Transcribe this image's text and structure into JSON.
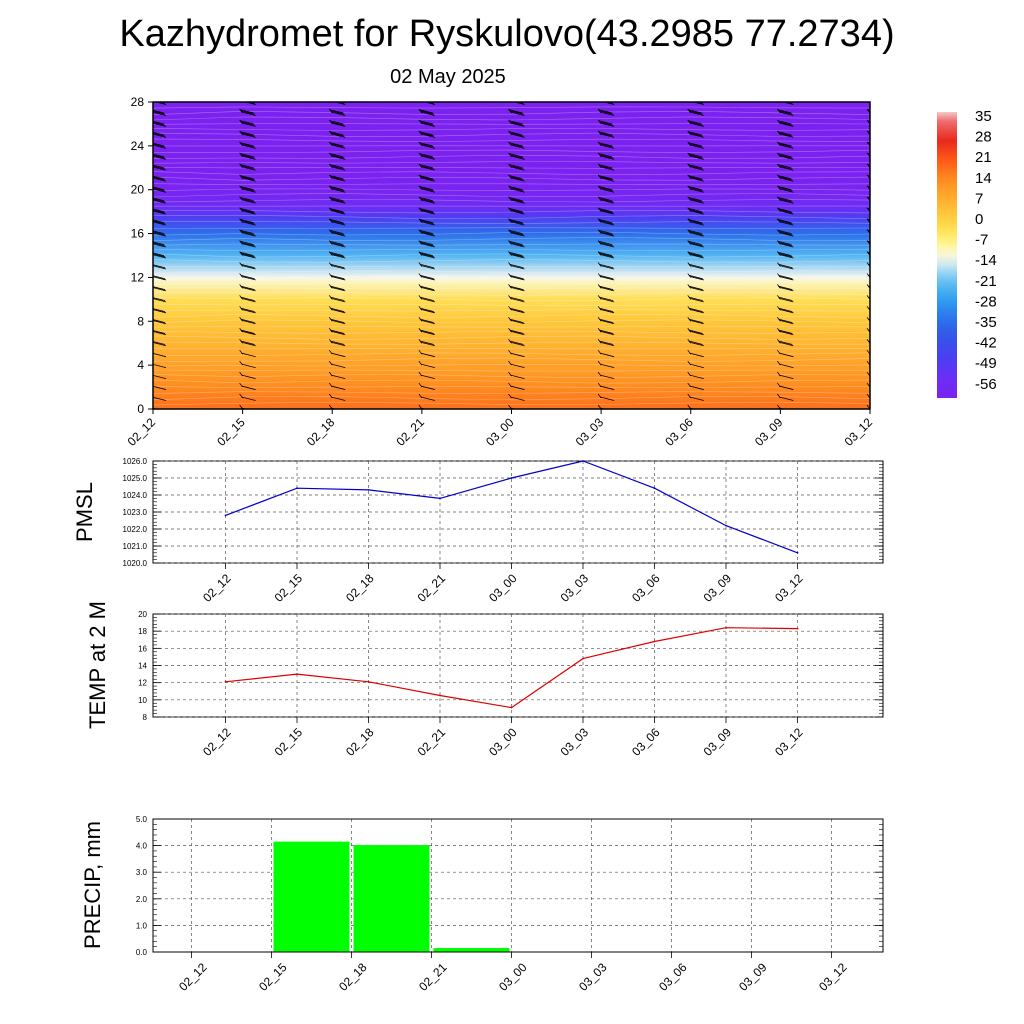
{
  "header": {
    "title": "Kazhydromet for Ryskulovo(43.2985 77.2734)",
    "date": "02 May 2025"
  },
  "colors": {
    "pmsl_line": "#0000cc",
    "temp_line": "#e00000",
    "precip_bar": "#00ff00",
    "barb": "#000000"
  },
  "chart_data": [
    {
      "id": "cross_section",
      "type": "heatmap",
      "x_ticks": [
        "02_12",
        "02_15",
        "02_18",
        "02_21",
        "03_00",
        "03_03",
        "03_06",
        "03_09",
        "03_12"
      ],
      "y_ticks": [
        "0",
        "4",
        "8",
        "12",
        "16",
        "20",
        "24",
        "28"
      ],
      "ylim": [
        0,
        28
      ],
      "levels": [
        0,
        1,
        2,
        3,
        4,
        5,
        6,
        7,
        8,
        9,
        10,
        11,
        12,
        13,
        14,
        15,
        16,
        17,
        18,
        19,
        20,
        21,
        22,
        23,
        24,
        25,
        26,
        27,
        28
      ],
      "temperature_profile": [
        [
          0,
          18
        ],
        [
          2,
          14
        ],
        [
          4,
          10
        ],
        [
          6,
          6
        ],
        [
          8,
          2
        ],
        [
          10,
          -3
        ],
        [
          11.8,
          -12
        ],
        [
          12,
          -14
        ],
        [
          14,
          -24
        ],
        [
          16,
          -36
        ],
        [
          17.5,
          -50
        ],
        [
          18.5,
          -58
        ],
        [
          20,
          -62
        ],
        [
          22,
          -64
        ],
        [
          24,
          -65
        ],
        [
          28,
          -66
        ]
      ],
      "colorbar": {
        "labels": [
          "35",
          "28",
          "21",
          "14",
          "7",
          "0",
          "-7",
          "-14",
          "-21",
          "-28",
          "-35",
          "-42",
          "-49",
          "-56"
        ],
        "range": [
          -63,
          38
        ]
      },
      "has_wind_barbs": true
    },
    {
      "id": "pmsl",
      "type": "line",
      "ylabel": "PMSL",
      "x_ticks": [
        "02_12",
        "02_15",
        "02_18",
        "02_21",
        "03_00",
        "03_03",
        "03_06",
        "03_09",
        "03_12"
      ],
      "y_ticks": [
        "1020.0",
        "1021.0",
        "1022.0",
        "1023.0",
        "1024.0",
        "1025.0",
        "1026.0"
      ],
      "ylim": [
        1020,
        1026
      ],
      "series": [
        {
          "values": [
            1022.8,
            1024.4,
            1024.3,
            1023.8,
            1025.0,
            1026.0,
            1024.4,
            1022.2,
            1020.6
          ]
        }
      ]
    },
    {
      "id": "temp2m",
      "type": "line",
      "ylabel": "TEMP at 2 M",
      "x_ticks": [
        "02_12",
        "02_15",
        "02_18",
        "02_21",
        "03_00",
        "03_03",
        "03_06",
        "03_09",
        "03_12"
      ],
      "y_ticks": [
        "8",
        "10",
        "12",
        "14",
        "16",
        "18",
        "20"
      ],
      "ylim": [
        8,
        20
      ],
      "series": [
        {
          "values": [
            12.1,
            13.0,
            12.1,
            10.5,
            9.1,
            14.8,
            16.8,
            18.4,
            18.3
          ]
        }
      ]
    },
    {
      "id": "precip",
      "type": "bar",
      "ylabel": "PRECIP, mm",
      "x_ticks": [
        "02_12",
        "02_15",
        "02_18",
        "02_21",
        "03_00",
        "03_03",
        "03_06",
        "03_09",
        "03_12"
      ],
      "y_ticks": [
        "0.0",
        "1.0",
        "2.0",
        "3.0",
        "4.0",
        "5.0"
      ],
      "ylim": [
        0,
        5
      ],
      "values": [
        0,
        4.15,
        4.02,
        0.15,
        0,
        0,
        0,
        0,
        0
      ]
    }
  ]
}
